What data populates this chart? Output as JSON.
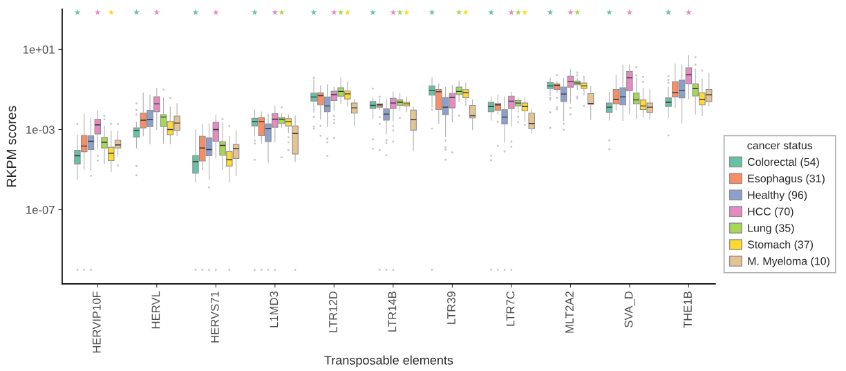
{
  "chart_data": {
    "type": "box",
    "xlabel": "Transposable elements",
    "ylabel": "RKPM scores",
    "legend_title": "cancer status",
    "legend": "right",
    "log": "y",
    "ylim": [
      2e-11,
      1000
    ],
    "yticks": [
      {
        "value": 1e-07,
        "label": "1e-07"
      },
      {
        "value": 0.001,
        "label": "1e-03"
      },
      {
        "value": 10,
        "label": "1e+01"
      }
    ],
    "categories": [
      "HERVIP10F",
      "HERVL",
      "HERVS71",
      "L1MD3",
      "LTR12D",
      "LTR14B",
      "LTR39",
      "LTR7C",
      "MLT2A2",
      "SVA_D",
      "THE1B"
    ],
    "series": [
      {
        "name": "Colorectal (54)",
        "color": "#66c2a5",
        "boxes": [
          {
            "low": 3.2e-06,
            "q1": 1.9e-05,
            "median": 4.9e-05,
            "q3": 9.1e-05,
            "high": 0.00055,
            "outliers": [
              0.0019,
              1e-10
            ]
          },
          {
            "low": 0.00012,
            "q1": 0.00042,
            "median": 0.00091,
            "q3": 0.0012,
            "high": 0.0023,
            "outliers": [
              0.02,
              0.0093,
              0.0055,
              1.5e-05,
              5.2e-06
            ]
          },
          {
            "low": 2.3e-06,
            "q1": 6.6e-06,
            "median": 2.5e-05,
            "q3": 5.1e-05,
            "high": 0.00098,
            "outliers": [
              1e-10
            ]
          },
          {
            "low": 0.00046,
            "q1": 0.0015,
            "median": 0.0025,
            "q3": 0.0036,
            "high": 0.0098,
            "outliers": [
              0.00028,
              0.0002,
              3.1e-05,
              1e-10
            ]
          },
          {
            "low": 0.0072,
            "q1": 0.026,
            "median": 0.042,
            "q3": 0.066,
            "high": 0.3,
            "outliers": [
              0.38,
              0.0042,
              0.0014,
              0.0011
            ]
          },
          {
            "low": 0.0035,
            "q1": 0.011,
            "median": 0.016,
            "q3": 0.025,
            "high": 0.041,
            "outliers": [
              0.11,
              0.00032,
              0.00011
            ]
          },
          {
            "low": 0.013,
            "q1": 0.052,
            "median": 0.091,
            "q3": 0.15,
            "high": 0.38,
            "outliers": [
              0.0098,
              0.0011,
              1e-10
            ]
          },
          {
            "low": 0.0029,
            "q1": 0.0078,
            "median": 0.014,
            "q3": 0.023,
            "high": 0.041,
            "outliers": [
              4.9e-05,
              2.9e-05,
              1e-10
            ]
          },
          {
            "low": 0.049,
            "q1": 0.11,
            "median": 0.15,
            "q3": 0.22,
            "high": 0.38,
            "outliers": [
              0.038,
              0.031,
              0.0072,
              0.0012
            ]
          },
          {
            "low": 0.0029,
            "q1": 0.0072,
            "median": 0.013,
            "q3": 0.021,
            "high": 0.072,
            "outliers": [
              0.00029,
              0.000105
            ]
          },
          {
            "low": 0.0038,
            "q1": 0.014,
            "median": 0.023,
            "q3": 0.038,
            "high": 0.13,
            "outliers": [
              0.46,
              0.3,
              0.21,
              0.00051
            ]
          }
        ]
      },
      {
        "name": "Esophagus (31)",
        "color": "#fc8d62",
        "boxes": [
          {
            "low": 1e-05,
            "q1": 7.8e-05,
            "median": 0.00015,
            "q3": 0.00051,
            "high": 0.0059,
            "outliers": [
              1e-10
            ]
          },
          {
            "low": 0.00047,
            "q1": 0.0012,
            "median": 0.0029,
            "q3": 0.0066,
            "high": 0.068
          },
          {
            "low": 1e-05,
            "q1": 2.7e-05,
            "median": 0.00012,
            "q3": 0.00046,
            "high": 0.0019,
            "outliers": [
              1e-10
            ]
          },
          {
            "low": 0.00021,
            "q1": 0.00049,
            "median": 0.0025,
            "q3": 0.004,
            "high": 0.0076,
            "outliers": [
              1e-10
            ]
          },
          {
            "low": 0.0033,
            "q1": 0.017,
            "median": 0.049,
            "q3": 0.068,
            "high": 0.15,
            "outliers": [
              0.0015,
              0.00049
            ]
          },
          {
            "low": 0.01,
            "q1": 0.013,
            "median": 0.017,
            "q3": 0.019,
            "high": 0.035,
            "outliers": [
              0.043,
              0.0041,
              0.0019,
              9.3e-05,
              1e-10
            ]
          },
          {
            "low": 0.002,
            "q1": 0.01,
            "median": 0.076,
            "q3": 0.1,
            "high": 0.19
          },
          {
            "low": 0.0059,
            "q1": 0.0091,
            "median": 0.017,
            "q3": 0.02,
            "high": 0.055,
            "outliers": [
              0.0024,
              0.00015,
              1e-10
            ]
          },
          {
            "low": 0.072,
            "q1": 0.1,
            "median": 0.16,
            "q3": 0.19,
            "high": 0.26,
            "outliers": [
              0.52,
              0.038,
              0.013,
              0.01
            ]
          },
          {
            "low": 0.0093,
            "q1": 0.019,
            "median": 0.032,
            "q3": 0.1,
            "high": 0.52
          },
          {
            "low": 0.012,
            "q1": 0.043,
            "median": 0.068,
            "q3": 0.24,
            "high": 1.9
          }
        ]
      },
      {
        "name": "Healthy (96)",
        "color": "#8da0cb",
        "boxes": [
          {
            "low": 9.3e-06,
            "q1": 0.0001,
            "median": 0.00026,
            "q3": 0.00049,
            "high": 0.0038,
            "outliers": [
              4.9e-06,
              1e-10
            ]
          },
          {
            "low": 0.00019,
            "q1": 0.0014,
            "median": 0.0031,
            "q3": 0.0091,
            "high": 0.055
          },
          {
            "low": 3.2e-06,
            "q1": 4.9e-05,
            "median": 0.0001,
            "q3": 0.00038,
            "high": 0.002,
            "outliers": [
              1.3e-06,
              1e-10
            ]
          },
          {
            "low": 2.3e-05,
            "q1": 0.00025,
            "median": 0.0011,
            "q3": 0.0019,
            "high": 0.0057,
            "outliers": [
              1e-10
            ]
          },
          {
            "low": 0.0014,
            "q1": 0.0078,
            "median": 0.015,
            "q3": 0.042,
            "high": 0.17,
            "outliers": [
              0.00035,
              0.00023,
              4.9e-05
            ]
          },
          {
            "low": 0.00059,
            "q1": 0.0029,
            "median": 0.0059,
            "q3": 0.011,
            "high": 0.033,
            "outliers": [
              0.00029,
              0.00021,
              5.2e-05,
              1e-10
            ]
          },
          {
            "low": 0.00046,
            "q1": 0.0055,
            "median": 0.013,
            "q3": 0.04,
            "high": 0.13,
            "outliers": [
              0.00028,
              0.00013,
              0.0001,
              3.1e-05
            ]
          },
          {
            "low": 0.00023,
            "q1": 0.0019,
            "median": 0.0042,
            "q3": 0.0098,
            "high": 0.043,
            "outliers": [
              8.1e-05,
              1e-10
            ]
          },
          {
            "low": 0.0028,
            "q1": 0.025,
            "median": 0.059,
            "q3": 0.13,
            "high": 0.35,
            "outliers": [
              0.0019,
              0.00095
            ]
          },
          {
            "low": 0.0028,
            "q1": 0.017,
            "median": 0.043,
            "q3": 0.12,
            "high": 1.7
          },
          {
            "low": 0.0021,
            "q1": 0.038,
            "median": 0.091,
            "q3": 0.29,
            "high": 1.7
          }
        ]
      },
      {
        "name": "HCC (70)",
        "color": "#e78ac3",
        "boxes": [
          {
            "low": 0.000105,
            "q1": 0.0006,
            "median": 0.0017,
            "q3": 0.0032,
            "high": 0.0085,
            "outliers": [
              4.9e-05,
              2.8e-05
            ]
          },
          {
            "low": 0.00098,
            "q1": 0.0078,
            "median": 0.019,
            "q3": 0.043,
            "high": 0.11
          },
          {
            "low": 3.8e-05,
            "q1": 0.00026,
            "median": 0.001,
            "q3": 0.0023,
            "high": 0.0053,
            "outliers": [
              1e-10
            ]
          },
          {
            "low": 0.00025,
            "q1": 0.0013,
            "median": 0.0033,
            "q3": 0.0062,
            "high": 0.015,
            "outliers": [
              1e-10
            ]
          },
          {
            "low": 0.0087,
            "q1": 0.028,
            "median": 0.055,
            "q3": 0.081,
            "high": 0.13,
            "outliers": [
              0.0047,
              0.0031,
              0.0021,
              0.00038
            ]
          },
          {
            "low": 0.0025,
            "q1": 0.011,
            "median": 0.021,
            "q3": 0.036,
            "high": 0.076,
            "outliers": [
              0.0015,
              0.00091,
              0.00025,
              1e-10
            ]
          },
          {
            "low": 0.0024,
            "q1": 0.012,
            "median": 0.04,
            "q3": 0.063,
            "high": 0.16,
            "outliers": [
              7.2e-05
            ]
          },
          {
            "low": 0.0015,
            "q1": 0.011,
            "median": 0.026,
            "q3": 0.046,
            "high": 0.072,
            "outliers": [
              0.00025,
              0.00014,
              1e-10
            ]
          },
          {
            "low": 0.021,
            "q1": 0.13,
            "median": 0.25,
            "q3": 0.46,
            "high": 0.98,
            "outliers": [
              0.012,
              0.0057
            ]
          },
          {
            "low": 0.006,
            "q1": 0.085,
            "median": 0.38,
            "q3": 0.78,
            "high": 1.7
          },
          {
            "low": 0.035,
            "q1": 0.19,
            "median": 0.54,
            "q3": 1.2,
            "high": 4.9
          }
        ]
      },
      {
        "name": "Lung (35)",
        "color": "#a6d854",
        "boxes": [
          {
            "low": 2e-05,
            "q1": 0.00012,
            "median": 0.00023,
            "q3": 0.00041,
            "high": 0.0015,
            "outliers": [
              0.0047,
              0.0032
            ]
          },
          {
            "low": 0.00021,
            "q1": 0.0014,
            "median": 0.0042,
            "q3": 0.0055,
            "high": 0.038,
            "outliers": [
              0.098
            ]
          },
          {
            "low": 1e-05,
            "q1": 5.2e-05,
            "median": 0.00016,
            "q3": 0.00025,
            "high": 0.0023,
            "outliers": [
              0.0033
            ]
          },
          {
            "low": 0.0013,
            "q1": 0.002,
            "median": 0.0033,
            "q3": 0.004,
            "high": 0.0063,
            "outliers": [
              0.013,
              4.1e-05
            ]
          },
          {
            "low": 0.02,
            "q1": 0.046,
            "median": 0.079,
            "q3": 0.12,
            "high": 0.4
          },
          {
            "low": 0.0087,
            "q1": 0.016,
            "median": 0.023,
            "q3": 0.03,
            "high": 0.063,
            "outliers": [
              0.0038
            ]
          },
          {
            "low": 0.024,
            "q1": 0.055,
            "median": 0.079,
            "q3": 0.13,
            "high": 0.27,
            "outliers": [
              0.0049
            ]
          },
          {
            "low": 0.0072,
            "q1": 0.015,
            "median": 0.021,
            "q3": 0.028,
            "high": 0.041,
            "outliers": [
              0.0043,
              0.0023
            ]
          },
          {
            "low": 0.1,
            "q1": 0.17,
            "median": 0.21,
            "q3": 0.26,
            "high": 0.35,
            "outliers": [
              0.69,
              0.5,
              0.043,
              0.036
            ]
          },
          {
            "low": 0.0035,
            "q1": 0.019,
            "median": 0.03,
            "q3": 0.066,
            "high": 0.38,
            "outliers": [
              1.3,
              0.51
            ]
          },
          {
            "low": 0.0059,
            "q1": 0.047,
            "median": 0.11,
            "q3": 0.19,
            "high": 1.05,
            "outliers": [
              4.1,
              1.7
            ]
          }
        ]
      },
      {
        "name": "Stomach (37)",
        "color": "#ffd92f",
        "boxes": [
          {
            "low": 8.1e-06,
            "q1": 2.8e-05,
            "median": 6.6e-05,
            "q3": 0.00013,
            "high": 0.00085,
            "outliers": [
              0.0019
            ]
          },
          {
            "low": 0.00019,
            "q1": 0.00055,
            "median": 0.001,
            "q3": 0.0026,
            "high": 0.013,
            "outliers": [
              0.038
            ]
          },
          {
            "low": 2.4e-06,
            "q1": 1.5e-05,
            "median": 3.1e-05,
            "q3": 7.9e-05,
            "high": 0.00047,
            "outliers": [
              0.0015,
              1e-10
            ]
          },
          {
            "low": 0.00069,
            "q1": 0.0015,
            "median": 0.0025,
            "q3": 0.0035,
            "high": 0.0055,
            "outliers": [
              0.00041,
              0.00023,
              9.3e-05
            ]
          },
          {
            "low": 0.015,
            "q1": 0.033,
            "median": 0.06,
            "q3": 0.083,
            "high": 0.24
          },
          {
            "low": 0.0076,
            "q1": 0.015,
            "median": 0.019,
            "q3": 0.023,
            "high": 0.043
          },
          {
            "low": 0.016,
            "q1": 0.039,
            "median": 0.068,
            "q3": 0.098,
            "high": 0.21
          },
          {
            "low": 0.0027,
            "q1": 0.0085,
            "median": 0.014,
            "q3": 0.021,
            "high": 0.041,
            "outliers": [
              0.0017
            ]
          },
          {
            "low": 0.052,
            "q1": 0.11,
            "median": 0.15,
            "q3": 0.21,
            "high": 0.46,
            "outliers": [
              0.015
            ]
          },
          {
            "low": 0.0041,
            "q1": 0.01,
            "median": 0.015,
            "q3": 0.03,
            "high": 0.11,
            "outliers": [
              0.42,
              0.24
            ]
          },
          {
            "low": 0.0049,
            "q1": 0.017,
            "median": 0.032,
            "q3": 0.068,
            "high": 0.33,
            "outliers": [
              0.88
            ]
          }
        ]
      },
      {
        "name": "M. Myeloma (10)",
        "color": "#e5c494",
        "boxes": [
          {
            "low": 4.7e-05,
            "q1": 0.00012,
            "median": 0.00017,
            "q3": 0.00029,
            "high": 0.00085,
            "outliers": [
              0.0019,
              1.6e-05
            ]
          },
          {
            "low": 0.00049,
            "q1": 0.00091,
            "median": 0.0021,
            "q3": 0.0047,
            "high": 0.02
          },
          {
            "low": 4.9e-06,
            "q1": 3.6e-05,
            "median": 0.00011,
            "q3": 0.00018,
            "high": 0.00087
          },
          {
            "low": 2.4e-05,
            "q1": 6e-05,
            "median": 0.00063,
            "q3": 0.0015,
            "high": 0.0047,
            "outliers": [
              1e-10
            ]
          },
          {
            "low": 0.0015,
            "q1": 0.0066,
            "median": 0.012,
            "q3": 0.021,
            "high": 0.03
          },
          {
            "low": 8.7e-05,
            "q1": 0.00093,
            "median": 0.0031,
            "q3": 0.0093,
            "high": 0.013
          },
          {
            "low": 0.00098,
            "q1": 0.0038,
            "median": 0.0049,
            "q3": 0.016,
            "high": 0.03
          },
          {
            "low": 0.00066,
            "q1": 0.0011,
            "median": 0.002,
            "q3": 0.0066,
            "high": 0.01
          },
          {
            "low": 0.0031,
            "q1": 0.018,
            "median": 0.02,
            "q3": 0.062,
            "high": 0.14
          },
          {
            "low": 0.0033,
            "q1": 0.0072,
            "median": 0.013,
            "q3": 0.021,
            "high": 0.1
          },
          {
            "low": 0.015,
            "q1": 0.025,
            "median": 0.054,
            "q3": 0.1,
            "high": 0.66
          }
        ]
      },
      {
        "type": "scatter",
        "marker": "star",
        "color": "#66c2a5",
        "values": [
          700,
          700,
          700,
          700,
          700,
          700,
          700,
          700,
          700,
          700,
          700
        ]
      },
      {
        "type": "scatter",
        "marker": "star",
        "color": "#e78ac3",
        "values": [
          700,
          700,
          700,
          700,
          700,
          700,
          null,
          700,
          700,
          700,
          700
        ]
      },
      {
        "type": "scatter",
        "marker": "star",
        "color": "#a6d854",
        "values": [
          null,
          null,
          null,
          700,
          700,
          700,
          700,
          700,
          700,
          null,
          null
        ]
      },
      {
        "type": "scatter",
        "marker": "star",
        "color": "#ffd92f",
        "values": [
          700,
          null,
          null,
          null,
          700,
          700,
          700,
          700,
          null,
          null,
          null
        ]
      }
    ]
  }
}
